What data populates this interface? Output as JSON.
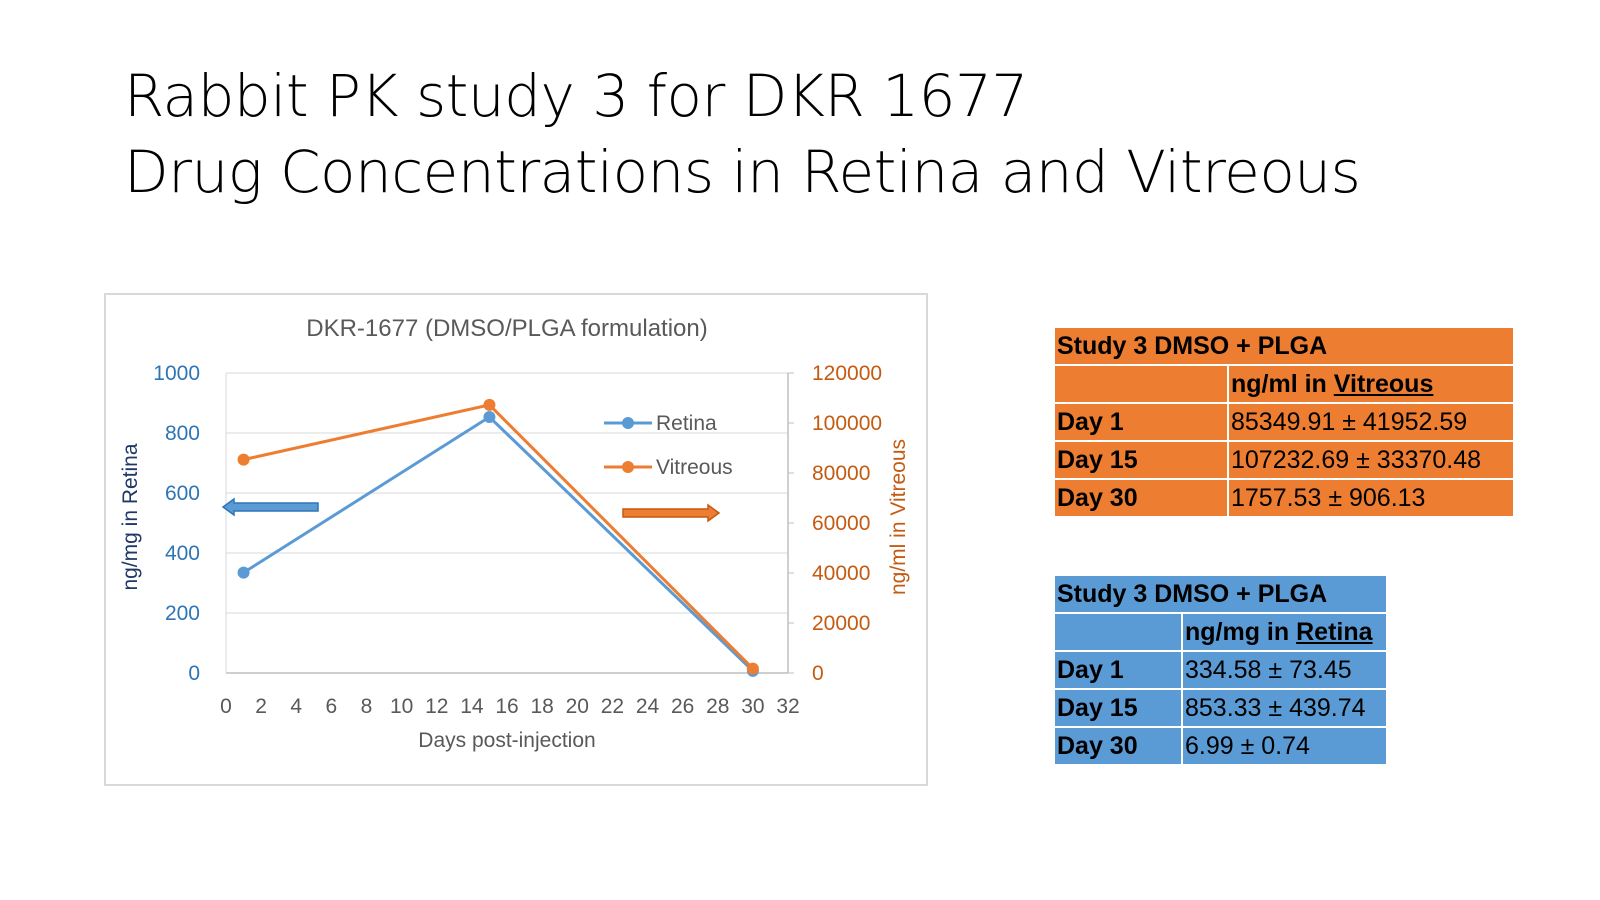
{
  "slide": {
    "title_line1": "Rabbit PK study 3 for DKR 1677",
    "title_line2": "Drug Concentrations in Retina and Vitreous"
  },
  "chart_data": {
    "type": "line",
    "title": "DKR-1677 (DMSO/PLGA formulation)",
    "xlabel": "Days post-injection",
    "ylabel_left": "ng/mg in Retina",
    "ylabel_right": "ng/ml in Vitreous",
    "xlim": [
      0,
      32
    ],
    "x_ticks": [
      0,
      2,
      4,
      6,
      8,
      10,
      12,
      14,
      16,
      18,
      20,
      22,
      24,
      26,
      28,
      30,
      32
    ],
    "ylim_left": [
      0,
      1000
    ],
    "y_ticks_left": [
      0,
      200,
      400,
      600,
      800,
      1000
    ],
    "ylim_right": [
      0,
      120000
    ],
    "y_ticks_right": [
      0,
      20000,
      40000,
      60000,
      80000,
      100000,
      120000
    ],
    "grid": true,
    "legend_position": "top-right",
    "series": [
      {
        "name": "Retina",
        "axis": "left",
        "color": "#5b9bd5",
        "x": [
          1,
          15,
          30
        ],
        "y": [
          334.58,
          853.33,
          6.99
        ]
      },
      {
        "name": "Vitreous",
        "axis": "right",
        "color": "#ed7d31",
        "x": [
          1,
          15,
          30
        ],
        "y": [
          85349.91,
          107232.69,
          1757.53
        ]
      }
    ],
    "left_axis_color": "#2e75b6",
    "right_axis_color": "#c55a11"
  },
  "table_vitreous": {
    "title": "Study 3 DMSO + PLGA",
    "header_prefix": "ng/ml in ",
    "header_emph": "Vitreous",
    "rows": [
      {
        "day": "Day 1",
        "value": "85349.91 ± 41952.59"
      },
      {
        "day": "Day 15",
        "value": "107232.69 ± 33370.48"
      },
      {
        "day": "Day 30",
        "value": "1757.53 ± 906.13"
      }
    ]
  },
  "table_retina": {
    "title": "Study 3 DMSO + PLGA",
    "header_prefix": "ng/mg in ",
    "header_emph": "Retina",
    "rows": [
      {
        "day": "Day 1",
        "value": "334.58 ± 73.45"
      },
      {
        "day": "Day 15",
        "value": "853.33 ± 439.74"
      },
      {
        "day": "Day 30",
        "value": "6.99 ± 0.74"
      }
    ]
  }
}
